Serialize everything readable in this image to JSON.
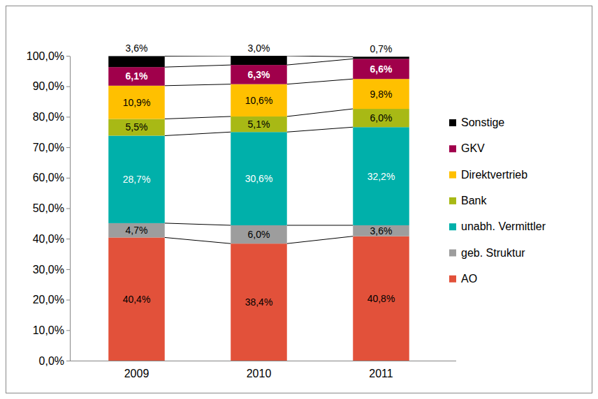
{
  "chart_data": {
    "type": "bar",
    "stacked": true,
    "data_labels": true,
    "grid": false,
    "legend": "right",
    "categories": [
      "2009",
      "2010",
      "2011"
    ],
    "ylim": [
      0,
      100
    ],
    "yticks": [
      {
        "value": 0,
        "label": "0,0%"
      },
      {
        "value": 10,
        "label": "10,0%"
      },
      {
        "value": 20,
        "label": "20,0%"
      },
      {
        "value": 30,
        "label": "30,0%"
      },
      {
        "value": 40,
        "label": "40,0%"
      },
      {
        "value": 50,
        "label": "50,0%"
      },
      {
        "value": 60,
        "label": "60,0%"
      },
      {
        "value": 70,
        "label": "70,0%"
      },
      {
        "value": 80,
        "label": "80,0%"
      },
      {
        "value": 90,
        "label": "90,0%"
      },
      {
        "value": 100,
        "label": "100,0%"
      }
    ],
    "series": [
      {
        "name": "AO",
        "color": "#e2513a",
        "values": [
          40.4,
          38.4,
          40.8
        ],
        "value_labels": [
          "40,4%",
          "38,4%",
          "40,8%"
        ]
      },
      {
        "name": "geb. Struktur",
        "color": "#9d9d9d",
        "values": [
          4.7,
          6.0,
          3.6
        ],
        "value_labels": [
          "4,7%",
          "6,0%",
          "3,6%"
        ]
      },
      {
        "name": "unabh. Vermittler",
        "color": "#00b0aa",
        "values": [
          28.7,
          30.6,
          32.2
        ],
        "value_labels": [
          "28,7%",
          "30,6%",
          "32,2%"
        ]
      },
      {
        "name": "Bank",
        "color": "#a8b915",
        "values": [
          5.5,
          5.1,
          6.0
        ],
        "value_labels": [
          "5,5%",
          "5,1%",
          "6,0%"
        ]
      },
      {
        "name": "Direktvertrieb",
        "color": "#ffc000",
        "values": [
          10.9,
          10.6,
          9.8
        ],
        "value_labels": [
          "10,9%",
          "10,6%",
          "9,8%"
        ]
      },
      {
        "name": "GKV",
        "color": "#a0004b",
        "values": [
          6.1,
          6.3,
          6.6
        ],
        "value_labels": [
          "6,1%",
          "6,3%",
          "6,6%"
        ]
      },
      {
        "name": "Sonstige",
        "color": "#000000",
        "values": [
          3.6,
          3.0,
          0.7
        ],
        "value_labels": [
          "3,6%",
          "3,0%",
          "0,7%"
        ]
      }
    ]
  }
}
